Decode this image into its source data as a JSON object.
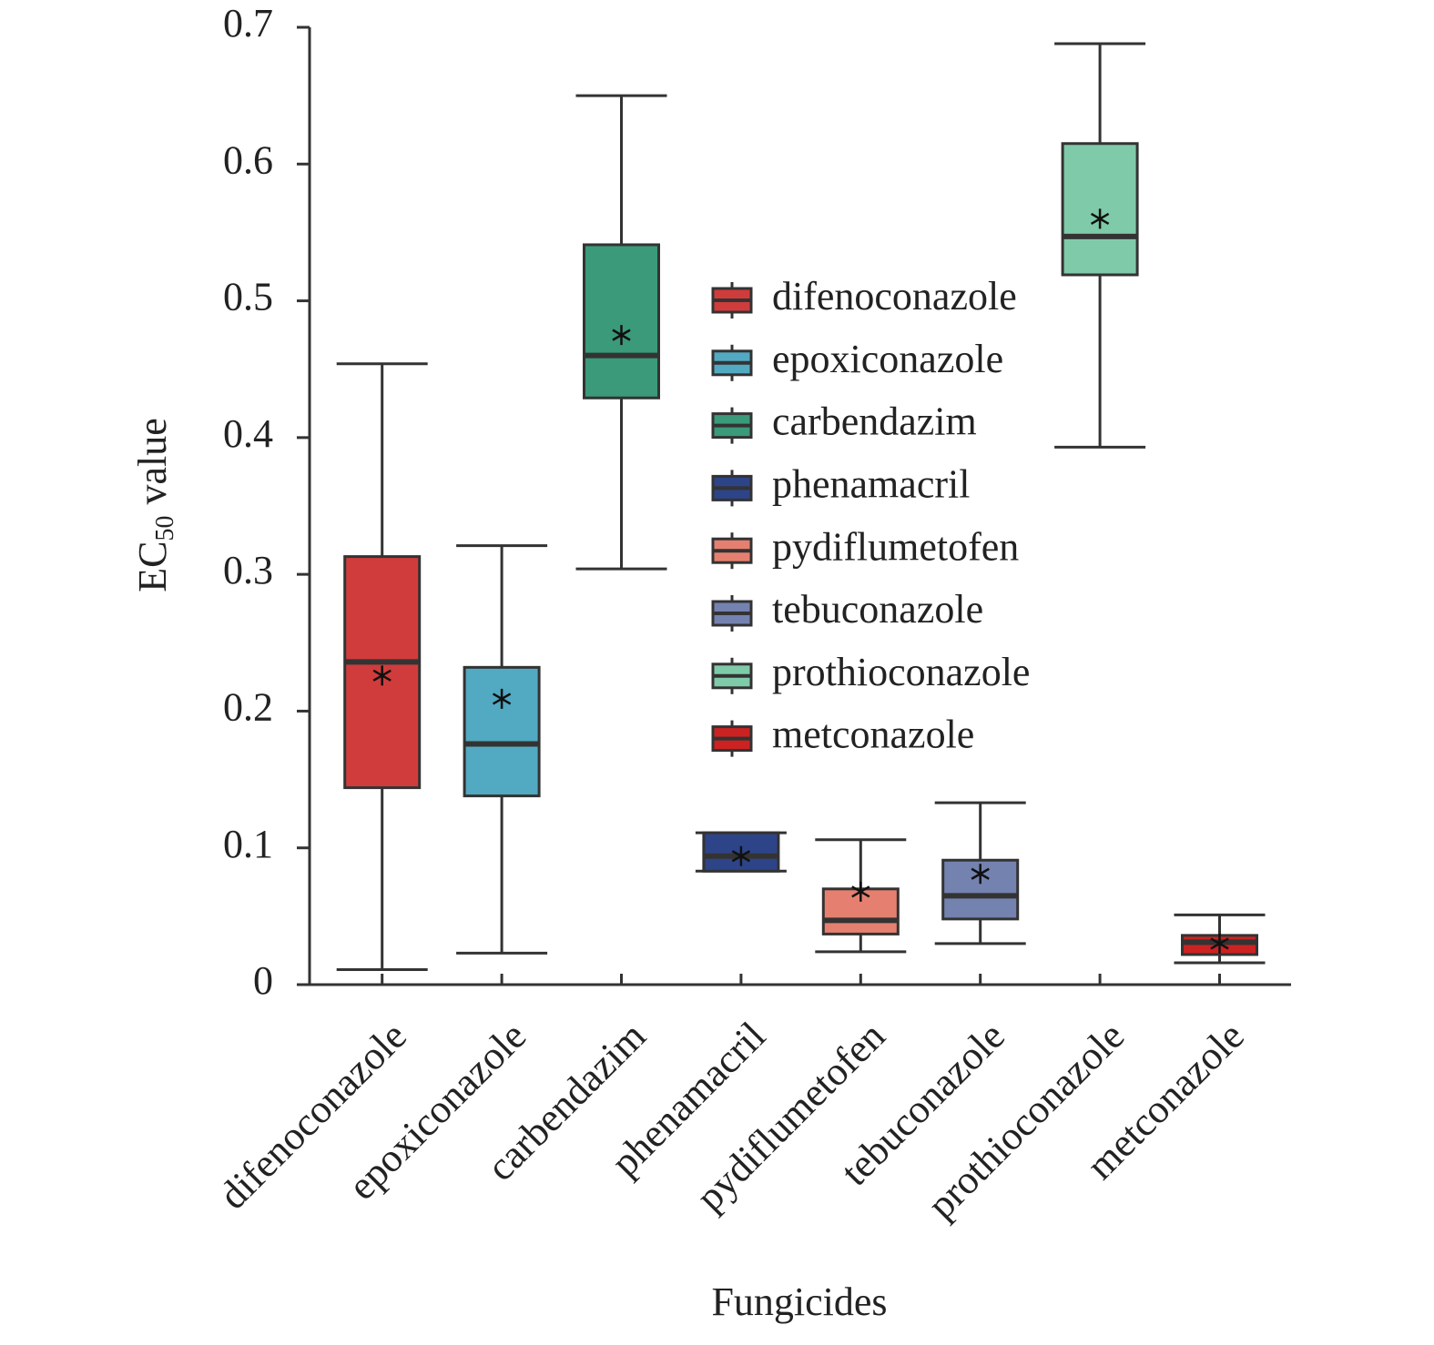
{
  "chart_data": {
    "type": "box",
    "x_label": "Fungicides",
    "y_label": {
      "main": "EC",
      "sub": "50",
      "rest": "value"
    },
    "categories": [
      "difenoconazole",
      "epoxiconazole",
      "carbendazim",
      "phenamacril",
      "pydiflumetofen",
      "tebuconazole",
      "prothioconazole",
      "metconazole"
    ],
    "boxes": [
      {
        "name": "difenoconazole",
        "color": "#d03c3c",
        "whisker_low": 0.011,
        "q1": 0.144,
        "median": 0.236,
        "q3": 0.313,
        "whisker_high": 0.454,
        "mean": 0.226
      },
      {
        "name": "epoxiconazole",
        "color": "#52a9c2",
        "whisker_low": 0.023,
        "q1": 0.138,
        "median": 0.176,
        "q3": 0.232,
        "whisker_high": 0.321,
        "mean": 0.209
      },
      {
        "name": "carbendazim",
        "color": "#3a9a7a",
        "whisker_low": 0.304,
        "q1": 0.429,
        "median": 0.46,
        "q3": 0.541,
        "whisker_high": 0.65,
        "mean": 0.475
      },
      {
        "name": "phenamacril",
        "color": "#2e4488",
        "whisker_low": 0.083,
        "q1": 0.083,
        "median": 0.094,
        "q3": 0.111,
        "whisker_high": 0.111,
        "mean": 0.094
      },
      {
        "name": "pydiflumetofen",
        "color": "#e58070",
        "whisker_low": 0.024,
        "q1": 0.037,
        "median": 0.047,
        "q3": 0.07,
        "whisker_high": 0.106,
        "mean": 0.068
      },
      {
        "name": "tebuconazole",
        "color": "#7482b0",
        "whisker_low": 0.03,
        "q1": 0.048,
        "median": 0.065,
        "q3": 0.091,
        "whisker_high": 0.133,
        "mean": 0.081
      },
      {
        "name": "prothioconazole",
        "color": "#7fcaa8",
        "whisker_low": 0.393,
        "q1": 0.519,
        "median": 0.547,
        "q3": 0.615,
        "whisker_high": 0.688,
        "mean": 0.56
      },
      {
        "name": "metconazole",
        "color": "#cc2222",
        "whisker_low": 0.016,
        "q1": 0.022,
        "median": 0.031,
        "q3": 0.036,
        "whisker_high": 0.051,
        "mean": 0.03
      }
    ],
    "ylim": [
      0,
      0.7
    ],
    "yticks": [
      0,
      0.1,
      0.2,
      0.3,
      0.4,
      0.5,
      0.6,
      0.7
    ]
  }
}
